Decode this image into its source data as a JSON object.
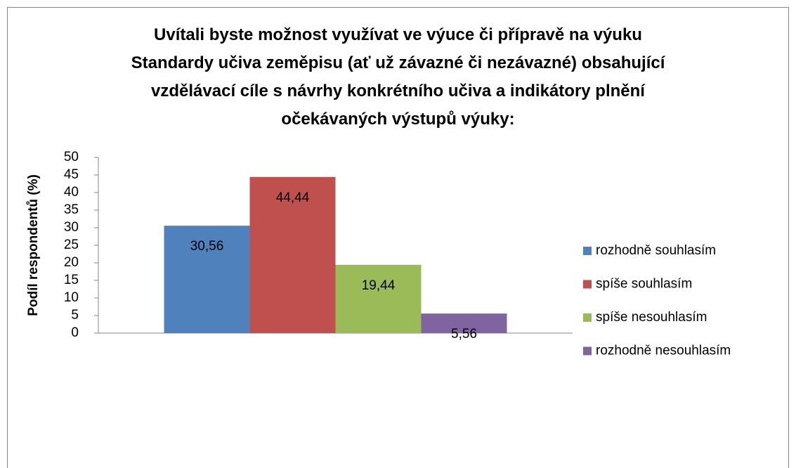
{
  "chart_data": {
    "type": "bar",
    "title": "Uvítali byste možnost využívat ve výuce či přípravě na výuku\nStandardy učiva zeměpisu (ať už závazné či nezávazné) obsahující\nvzdělávací cíle s návrhy konkrétního učiva a indikátory plnění\nočekávaných výstupů výuky:",
    "y_label": "Podíl respondentů (%)",
    "categories": [
      null
    ],
    "series": [
      {
        "name": "rozhodně souhlasím",
        "color": "#4f81bd",
        "values": [
          30.56
        ],
        "value_labels": [
          "30,56"
        ]
      },
      {
        "name": "spíše souhlasím",
        "color": "#c0504d",
        "values": [
          44.44
        ],
        "value_labels": [
          "44,44"
        ]
      },
      {
        "name": "spíše nesouhlasím",
        "color": "#9bbb59",
        "values": [
          19.44
        ],
        "value_labels": [
          "19,44"
        ]
      },
      {
        "name": "rozhodně nesouhlasím",
        "color": "#8064a2",
        "values": [
          5.56
        ],
        "value_labels": [
          "5,56"
        ]
      }
    ],
    "ylim": [
      0,
      50
    ],
    "yticks": [
      0,
      5,
      10,
      15,
      20,
      25,
      30,
      35,
      40,
      45,
      50
    ],
    "grid": false,
    "legend": "right"
  }
}
